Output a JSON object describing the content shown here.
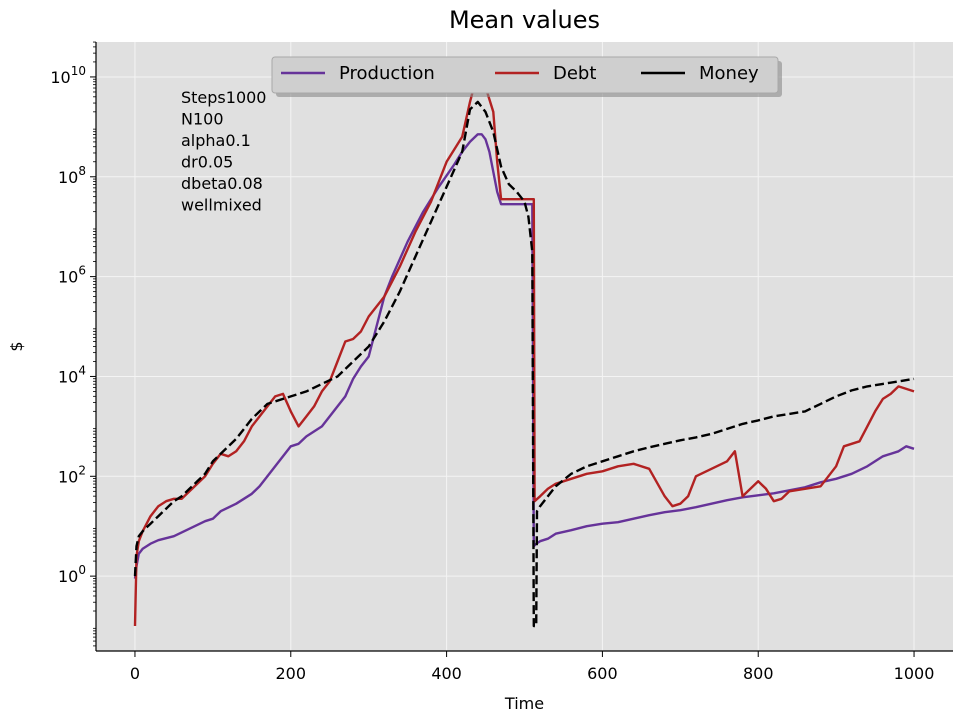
{
  "chart_data": {
    "type": "line",
    "title": "Mean values",
    "xlabel": "Time",
    "ylabel": "$",
    "xlim": [
      -50,
      1050
    ],
    "xticks": [
      0,
      200,
      400,
      600,
      800,
      1000
    ],
    "yscale": "log",
    "ylim_log10": [
      -1.5,
      10.7
    ],
    "yticks": [
      {
        "exp": 0,
        "base": "10",
        "sup": "0"
      },
      {
        "exp": 2,
        "base": "10",
        "sup": "2"
      },
      {
        "exp": 4,
        "base": "10",
        "sup": "4"
      },
      {
        "exp": 6,
        "base": "10",
        "sup": "6"
      },
      {
        "exp": 8,
        "base": "10",
        "sup": "8"
      },
      {
        "exp": 10,
        "base": "10",
        "sup": "10"
      }
    ],
    "grid": true,
    "background": "#e0e0e0",
    "legend_position": "upper-center",
    "annotation": [
      "Steps1000",
      "N100",
      "alpha0.1",
      "dr0.05",
      "dbeta0.08",
      "wellmixed"
    ],
    "series": [
      {
        "name": "Production",
        "color": "#663399",
        "style": "solid",
        "points": [
          [
            0,
            -0.05
          ],
          [
            2,
            0.2
          ],
          [
            5,
            0.45
          ],
          [
            10,
            0.55
          ],
          [
            20,
            0.65
          ],
          [
            30,
            0.72
          ],
          [
            50,
            0.8
          ],
          [
            70,
            0.95
          ],
          [
            90,
            1.1
          ],
          [
            100,
            1.15
          ],
          [
            110,
            1.3
          ],
          [
            130,
            1.45
          ],
          [
            150,
            1.65
          ],
          [
            160,
            1.8
          ],
          [
            170,
            2.0
          ],
          [
            180,
            2.2
          ],
          [
            190,
            2.4
          ],
          [
            200,
            2.6
          ],
          [
            210,
            2.65
          ],
          [
            220,
            2.8
          ],
          [
            240,
            3.0
          ],
          [
            260,
            3.4
          ],
          [
            270,
            3.6
          ],
          [
            280,
            3.95
          ],
          [
            290,
            4.2
          ],
          [
            300,
            4.4
          ],
          [
            310,
            5.0
          ],
          [
            320,
            5.6
          ],
          [
            330,
            6.0
          ],
          [
            350,
            6.7
          ],
          [
            370,
            7.3
          ],
          [
            390,
            7.8
          ],
          [
            410,
            8.25
          ],
          [
            420,
            8.5
          ],
          [
            430,
            8.7
          ],
          [
            440,
            8.85
          ],
          [
            445,
            8.85
          ],
          [
            450,
            8.75
          ],
          [
            455,
            8.5
          ],
          [
            460,
            8.1
          ],
          [
            465,
            7.7
          ],
          [
            470,
            7.45
          ],
          [
            505,
            7.45
          ],
          [
            510,
            7.45
          ],
          [
            512,
            0.6
          ],
          [
            515,
            0.65
          ],
          [
            520,
            0.7
          ],
          [
            530,
            0.75
          ],
          [
            540,
            0.85
          ],
          [
            560,
            0.92
          ],
          [
            580,
            1.0
          ],
          [
            600,
            1.05
          ],
          [
            620,
            1.08
          ],
          [
            640,
            1.15
          ],
          [
            660,
            1.22
          ],
          [
            680,
            1.28
          ],
          [
            700,
            1.32
          ],
          [
            720,
            1.38
          ],
          [
            740,
            1.45
          ],
          [
            760,
            1.52
          ],
          [
            780,
            1.58
          ],
          [
            800,
            1.62
          ],
          [
            820,
            1.66
          ],
          [
            840,
            1.72
          ],
          [
            860,
            1.78
          ],
          [
            880,
            1.88
          ],
          [
            900,
            1.95
          ],
          [
            920,
            2.05
          ],
          [
            940,
            2.2
          ],
          [
            960,
            2.4
          ],
          [
            980,
            2.5
          ],
          [
            990,
            2.6
          ],
          [
            1000,
            2.55
          ]
        ]
      },
      {
        "name": "Debt",
        "color": "#b22222",
        "style": "solid",
        "points": [
          [
            0,
            -1.0
          ],
          [
            2,
            0.4
          ],
          [
            5,
            0.7
          ],
          [
            10,
            0.9
          ],
          [
            20,
            1.2
          ],
          [
            30,
            1.4
          ],
          [
            40,
            1.5
          ],
          [
            50,
            1.55
          ],
          [
            60,
            1.55
          ],
          [
            70,
            1.7
          ],
          [
            80,
            1.85
          ],
          [
            90,
            2.0
          ],
          [
            100,
            2.25
          ],
          [
            110,
            2.45
          ],
          [
            120,
            2.4
          ],
          [
            130,
            2.5
          ],
          [
            140,
            2.7
          ],
          [
            150,
            3.0
          ],
          [
            160,
            3.2
          ],
          [
            170,
            3.4
          ],
          [
            180,
            3.6
          ],
          [
            190,
            3.65
          ],
          [
            200,
            3.3
          ],
          [
            210,
            3.0
          ],
          [
            220,
            3.2
          ],
          [
            230,
            3.4
          ],
          [
            240,
            3.7
          ],
          [
            250,
            3.9
          ],
          [
            260,
            4.3
          ],
          [
            270,
            4.7
          ],
          [
            280,
            4.75
          ],
          [
            290,
            4.9
          ],
          [
            300,
            5.2
          ],
          [
            320,
            5.6
          ],
          [
            340,
            6.2
          ],
          [
            360,
            6.9
          ],
          [
            380,
            7.5
          ],
          [
            400,
            8.3
          ],
          [
            420,
            8.8
          ],
          [
            430,
            9.5
          ],
          [
            440,
            10.1
          ],
          [
            450,
            9.8
          ],
          [
            460,
            9.3
          ],
          [
            465,
            8.3
          ],
          [
            470,
            7.55
          ],
          [
            512,
            7.55
          ],
          [
            513,
            1.5
          ],
          [
            520,
            1.6
          ],
          [
            530,
            1.75
          ],
          [
            540,
            1.85
          ],
          [
            560,
            1.95
          ],
          [
            580,
            2.05
          ],
          [
            600,
            2.1
          ],
          [
            620,
            2.2
          ],
          [
            640,
            2.25
          ],
          [
            660,
            2.15
          ],
          [
            680,
            1.6
          ],
          [
            690,
            1.4
          ],
          [
            700,
            1.45
          ],
          [
            710,
            1.6
          ],
          [
            720,
            2.0
          ],
          [
            740,
            2.15
          ],
          [
            760,
            2.3
          ],
          [
            770,
            2.5
          ],
          [
            780,
            1.6
          ],
          [
            790,
            1.75
          ],
          [
            800,
            1.9
          ],
          [
            810,
            1.75
          ],
          [
            820,
            1.5
          ],
          [
            830,
            1.55
          ],
          [
            840,
            1.7
          ],
          [
            860,
            1.75
          ],
          [
            880,
            1.8
          ],
          [
            900,
            2.2
          ],
          [
            910,
            2.6
          ],
          [
            920,
            2.65
          ],
          [
            930,
            2.7
          ],
          [
            940,
            3.0
          ],
          [
            950,
            3.3
          ],
          [
            960,
            3.55
          ],
          [
            970,
            3.65
          ],
          [
            980,
            3.8
          ],
          [
            990,
            3.75
          ],
          [
            1000,
            3.7
          ]
        ]
      },
      {
        "name": "Money",
        "color": "#000000",
        "style": "dashed",
        "points": [
          [
            0,
            0.0
          ],
          [
            2,
            0.6
          ],
          [
            5,
            0.8
          ],
          [
            10,
            0.9
          ],
          [
            20,
            1.05
          ],
          [
            30,
            1.2
          ],
          [
            40,
            1.35
          ],
          [
            50,
            1.5
          ],
          [
            60,
            1.6
          ],
          [
            70,
            1.75
          ],
          [
            80,
            1.9
          ],
          [
            90,
            2.05
          ],
          [
            100,
            2.3
          ],
          [
            110,
            2.45
          ],
          [
            120,
            2.6
          ],
          [
            130,
            2.75
          ],
          [
            140,
            2.95
          ],
          [
            150,
            3.15
          ],
          [
            160,
            3.3
          ],
          [
            170,
            3.45
          ],
          [
            180,
            3.5
          ],
          [
            190,
            3.55
          ],
          [
            200,
            3.6
          ],
          [
            210,
            3.65
          ],
          [
            220,
            3.7
          ],
          [
            240,
            3.85
          ],
          [
            260,
            4.0
          ],
          [
            280,
            4.3
          ],
          [
            300,
            4.6
          ],
          [
            320,
            5.1
          ],
          [
            340,
            5.7
          ],
          [
            360,
            6.4
          ],
          [
            380,
            7.1
          ],
          [
            400,
            7.8
          ],
          [
            420,
            8.5
          ],
          [
            430,
            9.35
          ],
          [
            440,
            9.5
          ],
          [
            450,
            9.3
          ],
          [
            460,
            8.9
          ],
          [
            470,
            8.2
          ],
          [
            480,
            7.85
          ],
          [
            490,
            7.7
          ],
          [
            500,
            7.5
          ],
          [
            505,
            7.2
          ],
          [
            510,
            6.5
          ],
          [
            512,
            -1.0
          ],
          [
            515,
            -1.0
          ],
          [
            516,
            1.3
          ],
          [
            520,
            1.4
          ],
          [
            530,
            1.6
          ],
          [
            540,
            1.8
          ],
          [
            560,
            2.05
          ],
          [
            580,
            2.2
          ],
          [
            600,
            2.3
          ],
          [
            620,
            2.4
          ],
          [
            640,
            2.5
          ],
          [
            660,
            2.58
          ],
          [
            680,
            2.65
          ],
          [
            700,
            2.72
          ],
          [
            720,
            2.78
          ],
          [
            740,
            2.85
          ],
          [
            760,
            2.95
          ],
          [
            780,
            3.05
          ],
          [
            800,
            3.12
          ],
          [
            820,
            3.2
          ],
          [
            840,
            3.25
          ],
          [
            860,
            3.3
          ],
          [
            880,
            3.45
          ],
          [
            900,
            3.6
          ],
          [
            920,
            3.72
          ],
          [
            940,
            3.8
          ],
          [
            960,
            3.85
          ],
          [
            980,
            3.9
          ],
          [
            1000,
            3.95
          ]
        ]
      }
    ]
  }
}
